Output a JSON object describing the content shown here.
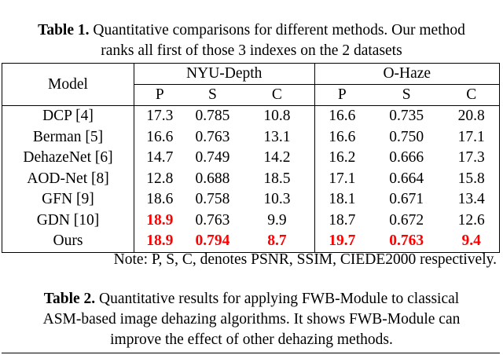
{
  "table1": {
    "label": "Table 1.",
    "caption": "Quantitative comparisons for different methods. Our method ranks all first of those 3 indexes on the 2 datasets",
    "header": {
      "model": "Model",
      "groups": [
        "NYU-Depth",
        "O-Haze"
      ],
      "metrics": [
        "P",
        "S",
        "C",
        "P",
        "S",
        "C"
      ]
    },
    "rows": [
      [
        "DCP [4]",
        "17.3",
        "0.785",
        "10.8",
        "16.6",
        "0.735",
        "20.8"
      ],
      [
        "Berman [5]",
        "16.6",
        "0.763",
        "13.1",
        "16.6",
        "0.750",
        "17.1"
      ],
      [
        "DehazeNet [6]",
        "14.7",
        "0.749",
        "14.2",
        "16.2",
        "0.666",
        "17.3"
      ],
      [
        "AOD-Net [8]",
        "12.8",
        "0.688",
        "18.5",
        "17.1",
        "0.664",
        "15.8"
      ],
      [
        "GFN [9]",
        "18.6",
        "0.758",
        "10.3",
        "18.1",
        "0.671",
        "13.4"
      ],
      [
        "GDN [10]",
        "18.9",
        "0.763",
        "9.9",
        "18.7",
        "0.672",
        "12.6"
      ],
      [
        "Ours",
        "18.9",
        "0.794",
        "8.7",
        "19.7",
        "0.763",
        "9.4"
      ]
    ],
    "emphasis": [
      [
        5,
        1
      ],
      [
        6,
        1
      ],
      [
        6,
        2
      ],
      [
        6,
        3
      ],
      [
        6,
        4
      ],
      [
        6,
        5
      ],
      [
        6,
        6
      ]
    ],
    "emphasis_color": "#ff0000",
    "note": "Note: P, S, C, denotes PSNR, SSIM, CIEDE2000 respectively."
  },
  "table2": {
    "label": "Table 2.",
    "caption": "Quantitative results for applying FWB-Module to classical ASM-based image dehazing algorithms. It shows FWB-Module can improve the effect of other dehazing methods."
  }
}
